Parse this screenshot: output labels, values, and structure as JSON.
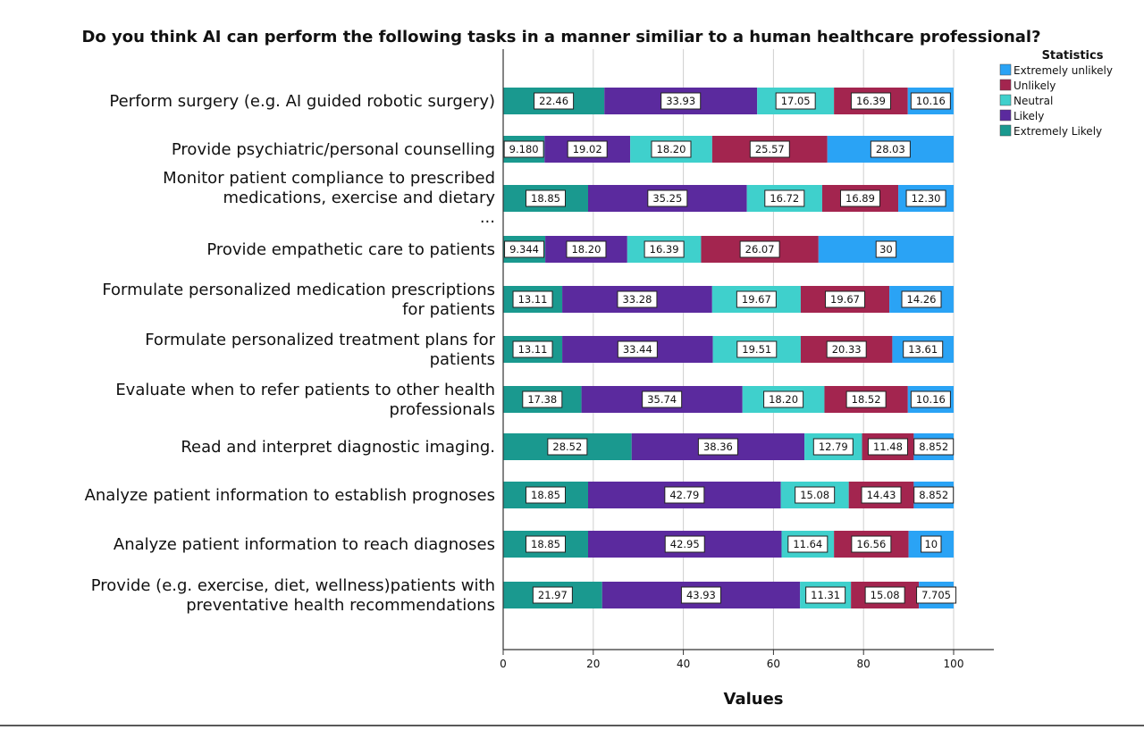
{
  "chart_data": {
    "type": "bar",
    "orientation": "horizontal",
    "stacked": true,
    "title": "Do you think AI can perform the following tasks in a manner similiar to a human healthcare professional?",
    "xlabel": "Values",
    "ylabel": "",
    "xlim": [
      0,
      100
    ],
    "xticks": [
      0,
      20,
      40,
      60,
      80,
      100
    ],
    "grid": "vertical",
    "legend": {
      "title": "Statistics",
      "position": "top-right",
      "entries": [
        "Extremely unlikely",
        "Unlikely",
        "Neutral",
        "Likely",
        "Extremely Likely"
      ]
    },
    "categories": [
      [
        "Perform surgery (e.g. AI guided robotic surgery)"
      ],
      [
        "Provide psychiatric/personal counselling"
      ],
      [
        "Monitor patient compliance to prescribed",
        "medications, exercise and dietary",
        "..."
      ],
      [
        "Provide empathetic care to patients"
      ],
      [
        "Formulate personalized medication prescriptions",
        "for patients"
      ],
      [
        "Formulate personalized treatment plans for",
        "patients"
      ],
      [
        "Evaluate when to refer patients to other health",
        "professionals"
      ],
      [
        "Read and interpret diagnostic imaging."
      ],
      [
        "Analyze patient information to establish prognoses"
      ],
      [
        "Analyze patient information to reach diagnoses"
      ],
      [
        "Provide  (e.g. exercise, diet, wellness)patients with",
        "preventative health recommendations"
      ]
    ],
    "series": [
      {
        "name": "Extremely Likely",
        "color": "#1a998f",
        "values": [
          22.46,
          9.18,
          18.85,
          9.344,
          13.11,
          13.11,
          17.38,
          28.52,
          18.85,
          18.85,
          21.97
        ],
        "labels": [
          "22.46",
          "9.180",
          "18.85",
          "9.344",
          "13.11",
          "13.11",
          "17.38",
          "28.52",
          "18.85",
          "18.85",
          "21.97"
        ]
      },
      {
        "name": "Likely",
        "color": "#5b2a9e",
        "values": [
          33.93,
          19.02,
          35.25,
          18.2,
          33.28,
          33.44,
          35.74,
          38.36,
          42.79,
          42.95,
          43.93
        ],
        "labels": [
          "33.93",
          "19.02",
          "35.25",
          "18.20",
          "33.28",
          "33.44",
          "35.74",
          "38.36",
          "42.79",
          "42.95",
          "43.93"
        ]
      },
      {
        "name": "Neutral",
        "color": "#3fd0cc",
        "values": [
          17.05,
          18.2,
          16.72,
          16.39,
          19.67,
          19.51,
          18.2,
          12.79,
          15.08,
          11.64,
          11.31
        ],
        "labels": [
          "17.05",
          "18.20",
          "16.72",
          "16.39",
          "19.67",
          "19.51",
          "18.20",
          "12.79",
          "15.08",
          "11.64",
          "11.31"
        ]
      },
      {
        "name": "Unlikely",
        "color": "#a3254f",
        "values": [
          16.39,
          25.57,
          16.89,
          26.07,
          19.67,
          20.33,
          18.52,
          11.48,
          14.43,
          16.56,
          15.08
        ],
        "labels": [
          "16.39",
          "25.57",
          "16.89",
          "26.07",
          "19.67",
          "20.33",
          "18.52",
          "11.48",
          "14.43",
          "16.56",
          "15.08"
        ]
      },
      {
        "name": "Extremely unlikely",
        "color": "#2aa3f5",
        "values": [
          10.16,
          28.03,
          12.3,
          30,
          14.26,
          13.61,
          10.16,
          8.852,
          8.852,
          10,
          7.705
        ],
        "labels": [
          "10.16",
          "28.03",
          "12.30",
          "30",
          "14.26",
          "13.61",
          "10.16",
          "8.852",
          "8.852",
          "10",
          "7.705"
        ]
      }
    ]
  }
}
